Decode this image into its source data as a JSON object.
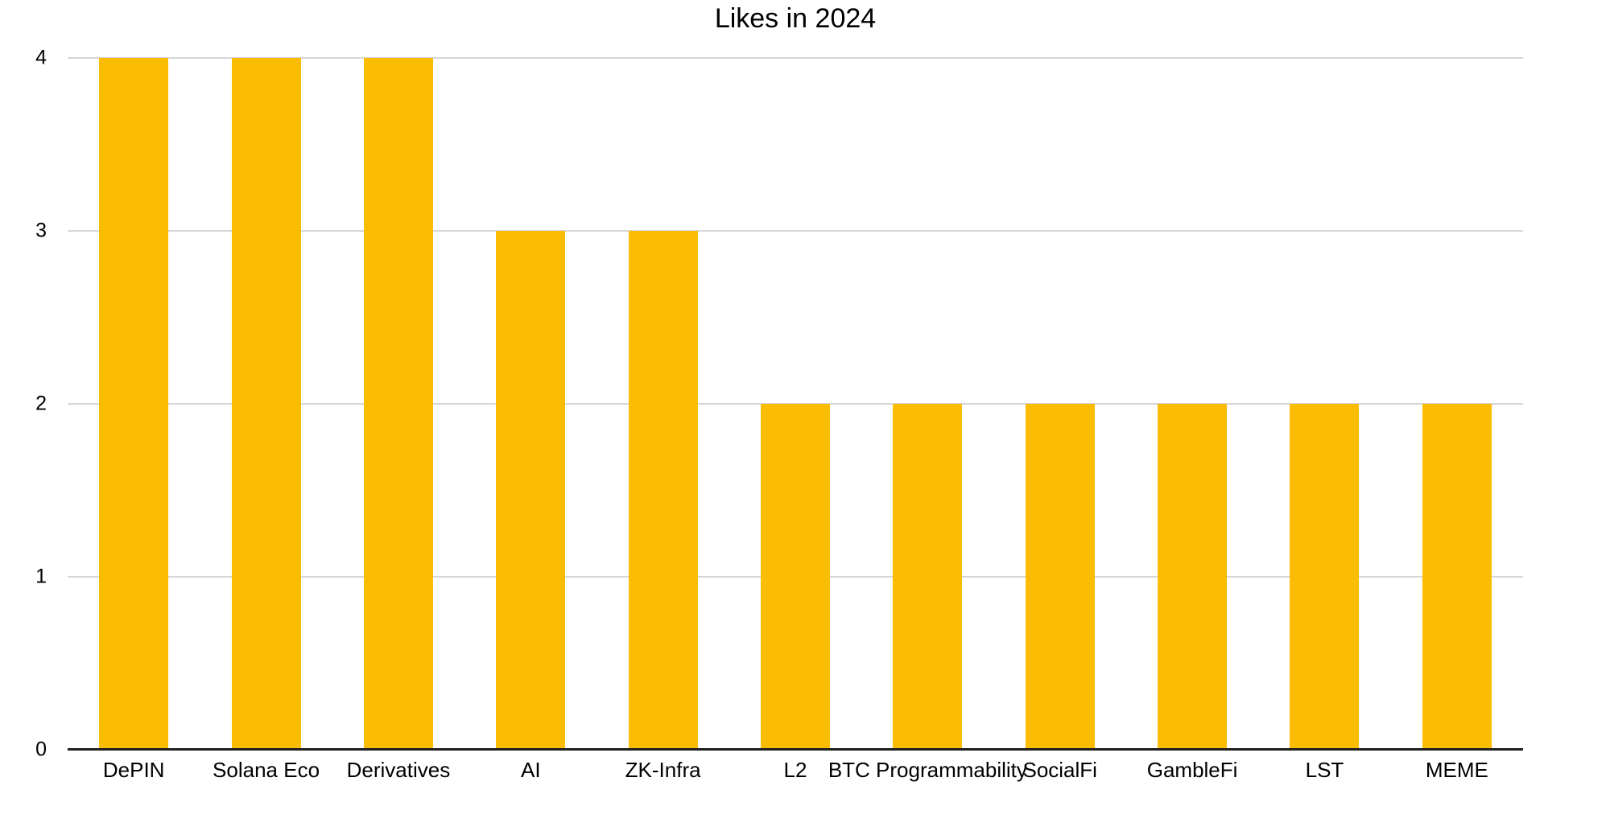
{
  "chart_data": {
    "type": "bar",
    "title": "Likes in 2024",
    "categories": [
      "DePIN",
      "Solana Eco",
      "Derivatives",
      "AI",
      "ZK-Infra",
      "L2",
      "BTC Programmability",
      "SocialFi",
      "GambleFi",
      "LST",
      "MEME"
    ],
    "values": [
      4,
      4,
      4,
      3,
      3,
      2,
      2,
      2,
      2,
      2,
      2
    ],
    "xlabel": "",
    "ylabel": "",
    "ylim": [
      0,
      4
    ],
    "yticks": [
      0,
      1,
      2,
      3,
      4
    ],
    "legend": "none",
    "grid": "horizontal",
    "bar_color": "#FBBC04",
    "gridline_color": "#D6D6D6",
    "axis_line_color": "#1F1F1F",
    "text_color": "#000000",
    "background_color": "#FFFFFF"
  }
}
